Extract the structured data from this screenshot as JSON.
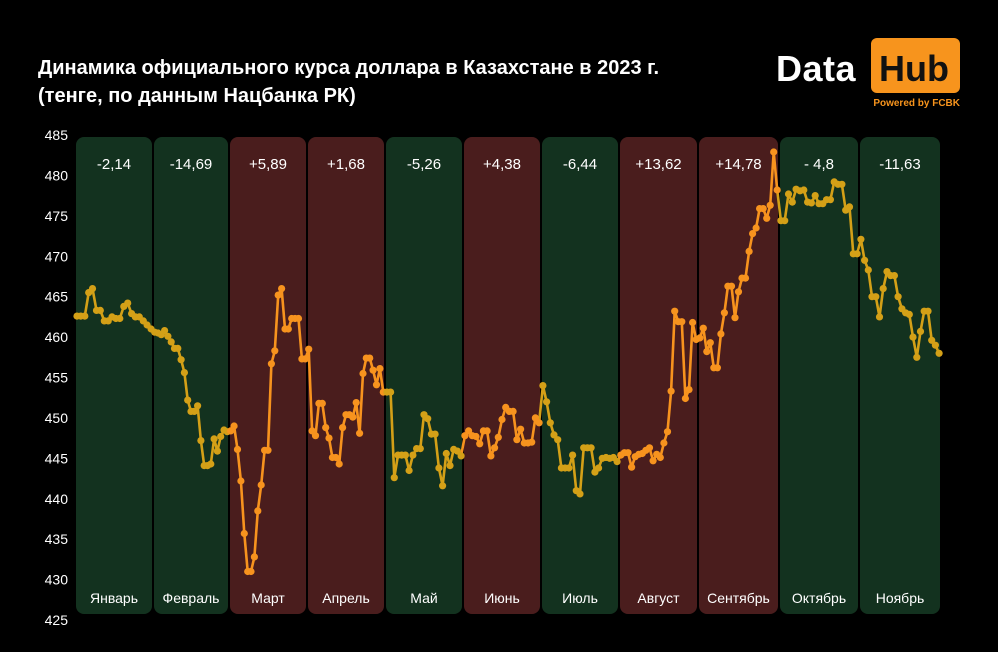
{
  "title_line1": "Динамика официального курса доллара в Казахстане в 2023 г.",
  "title_line2": "(тенге, по данным Нацбанка РК)",
  "logo": {
    "data": "Data",
    "hub": "Hub",
    "powered": "Powered by FCBK"
  },
  "colors": {
    "up": "#f7931e",
    "down": "#d4a017",
    "up_bg": "#4a1d1d",
    "down_bg": "#13321f",
    "logo_accent": "#f7941d"
  },
  "chart_data": {
    "type": "line",
    "title": "Динамика официального курса доллара в Казахстане в 2023 г.",
    "subtitle": "(тенге, по данным Нацбанка РК)",
    "ylim": [
      425,
      485
    ],
    "yticks": [
      425,
      430,
      435,
      440,
      445,
      450,
      455,
      460,
      465,
      470,
      475,
      480,
      485
    ],
    "grid": false,
    "months": [
      {
        "name": "Январь",
        "change": "-2,14",
        "trend": "down",
        "values": [
          462.6,
          462.6,
          462.6,
          465.5,
          466.0,
          463.3,
          463.3,
          462.0,
          462.0,
          462.5,
          462.3,
          462.3,
          463.8,
          464.2,
          462.9,
          462.5,
          462.5,
          462.0,
          461.5,
          461.0
        ]
      },
      {
        "name": "Февраль",
        "change": "-14,69",
        "trend": "down",
        "values": [
          460.6,
          460.5,
          460.3,
          460.8,
          460.1,
          459.4,
          458.6,
          458.6,
          457.2,
          455.6,
          452.2,
          450.8,
          450.8,
          451.5,
          447.2,
          444.1,
          444.1,
          444.3,
          447.4,
          445.9,
          447.7,
          448.5,
          448.3
        ]
      },
      {
        "name": "Март",
        "change": "+5,89",
        "trend": "up",
        "values": [
          448.4,
          449.0,
          446.1,
          442.2,
          435.7,
          431.0,
          431.0,
          432.8,
          438.5,
          441.7,
          446.0,
          446.0,
          456.7,
          458.3,
          465.2,
          466.0,
          461.0,
          461.0,
          462.3,
          462.3,
          462.3,
          457.3,
          457.3
        ]
      },
      {
        "name": "Апрель",
        "change": "+1,68",
        "trend": "up",
        "values": [
          458.5,
          448.4,
          447.8,
          451.8,
          451.8,
          448.8,
          447.5,
          445.1,
          445.1,
          444.3,
          448.8,
          450.4,
          450.4,
          450.1,
          451.9,
          448.1,
          455.5,
          457.4,
          457.4,
          455.9,
          454.1,
          456.1,
          453.2
        ]
      },
      {
        "name": "Май",
        "change": "-5,26",
        "trend": "down",
        "values": [
          453.2,
          453.2,
          442.6,
          445.4,
          445.4,
          445.4,
          443.5,
          445.4,
          446.2,
          446.2,
          450.4,
          449.9,
          448.0,
          448.0,
          443.8,
          441.6,
          445.6,
          444.1,
          446.1,
          445.9,
          445.3
        ]
      },
      {
        "name": "Июнь",
        "change": "+4,38",
        "trend": "up",
        "values": [
          447.8,
          448.4,
          447.8,
          447.7,
          446.8,
          448.4,
          448.4,
          445.3,
          446.3,
          447.6,
          449.8,
          451.3,
          450.8,
          450.8,
          447.3,
          448.6,
          446.9,
          446.9,
          447.0,
          450.0,
          449.4
        ]
      },
      {
        "name": "Июль",
        "change": "-6,44",
        "trend": "down",
        "values": [
          454.0,
          452.0,
          449.4,
          447.9,
          447.3,
          443.8,
          443.8,
          443.8,
          445.4,
          441.0,
          440.6,
          446.3,
          446.3,
          446.3,
          443.3,
          443.8,
          445.0,
          445.1,
          445.0,
          445.1,
          444.6
        ]
      },
      {
        "name": "Август",
        "change": "+13,62",
        "trend": "up",
        "values": [
          445.4,
          445.7,
          445.7,
          443.9,
          445.2,
          445.5,
          445.6,
          446.0,
          446.3,
          444.7,
          445.5,
          445.1,
          446.9,
          448.3,
          453.3,
          463.2,
          461.9,
          461.9,
          452.4,
          453.5,
          461.8,
          459.7
        ]
      },
      {
        "name": "Сентябрь",
        "change": "+14,78",
        "trend": "up",
        "values": [
          459.9,
          461.1,
          458.2,
          459.3,
          456.2,
          456.2,
          460.4,
          463.0,
          466.3,
          466.3,
          462.4,
          465.6,
          467.3,
          467.3,
          470.6,
          472.8,
          473.5,
          475.9,
          475.9,
          474.7,
          476.3,
          482.9,
          478.2
        ]
      },
      {
        "name": "Октябрь",
        "change": "- 4,8",
        "trend": "down",
        "values": [
          474.4,
          474.4,
          477.7,
          476.7,
          478.3,
          478.1,
          478.2,
          476.7,
          476.6,
          477.5,
          476.5,
          476.5,
          477.0,
          477.0,
          479.2,
          478.9,
          478.9,
          475.7,
          476.1,
          470.3,
          470.3
        ]
      },
      {
        "name": "Ноябрь",
        "change": "-11,63",
        "trend": "down",
        "values": [
          472.1,
          469.5,
          468.3,
          465.0,
          465.0,
          462.5,
          466.0,
          468.1,
          467.6,
          467.6,
          465.0,
          463.5,
          463.0,
          462.8,
          460.0,
          457.5,
          460.7,
          463.2,
          463.2,
          459.6,
          459.0,
          458.0
        ]
      }
    ]
  }
}
